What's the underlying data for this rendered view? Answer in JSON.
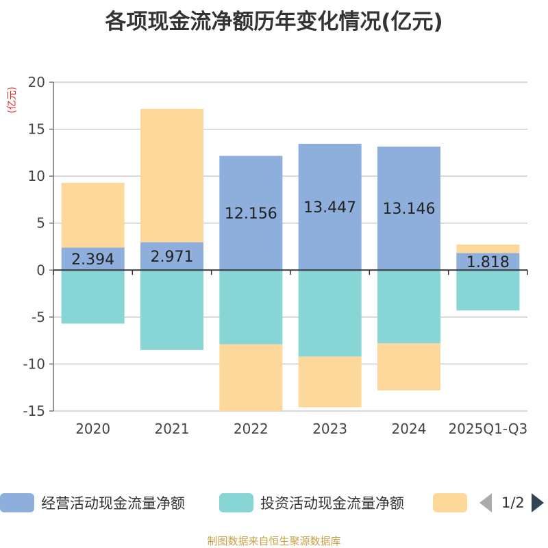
{
  "title": "各项现金流净额历年变化情况(亿元)",
  "source": "制图数据来自恒生聚源数据库",
  "legend": {
    "items": [
      {
        "label": "经营活动现金流量净额",
        "color": "#8eaedb"
      },
      {
        "label": "投资活动现金流量净额",
        "color": "#88d5d6"
      },
      {
        "label": "",
        "color": "#fdd89b"
      }
    ],
    "page": "1/2"
  },
  "chart_data": {
    "type": "bar",
    "stacked": true,
    "categories": [
      "2020",
      "2021",
      "2022",
      "2023",
      "2024",
      "2025Q1-Q3"
    ],
    "ylabel": "(亿元)",
    "ylim": [
      -15,
      20
    ],
    "yticks": [
      -15,
      -10,
      -5,
      0,
      5,
      10,
      15,
      20
    ],
    "grid": true,
    "legend_position": "bottom",
    "series": [
      {
        "name": "经营活动现金流量净额",
        "color": "#8eaedb",
        "values": [
          2.394,
          2.971,
          12.156,
          13.447,
          13.146,
          1.818
        ],
        "labels": [
          "2.394",
          "2.971",
          "12.156",
          "13.447",
          "13.146",
          "1.818"
        ]
      },
      {
        "name": "投资活动现金流量净额",
        "color": "#88d5d6",
        "values": [
          -5.7,
          -8.5,
          -7.9,
          -9.2,
          -7.8,
          -4.3
        ]
      },
      {
        "color": "#fdd89b",
        "values": [
          6.9,
          14.2,
          -7.1,
          -5.4,
          -5.0,
          0.9
        ]
      }
    ]
  }
}
